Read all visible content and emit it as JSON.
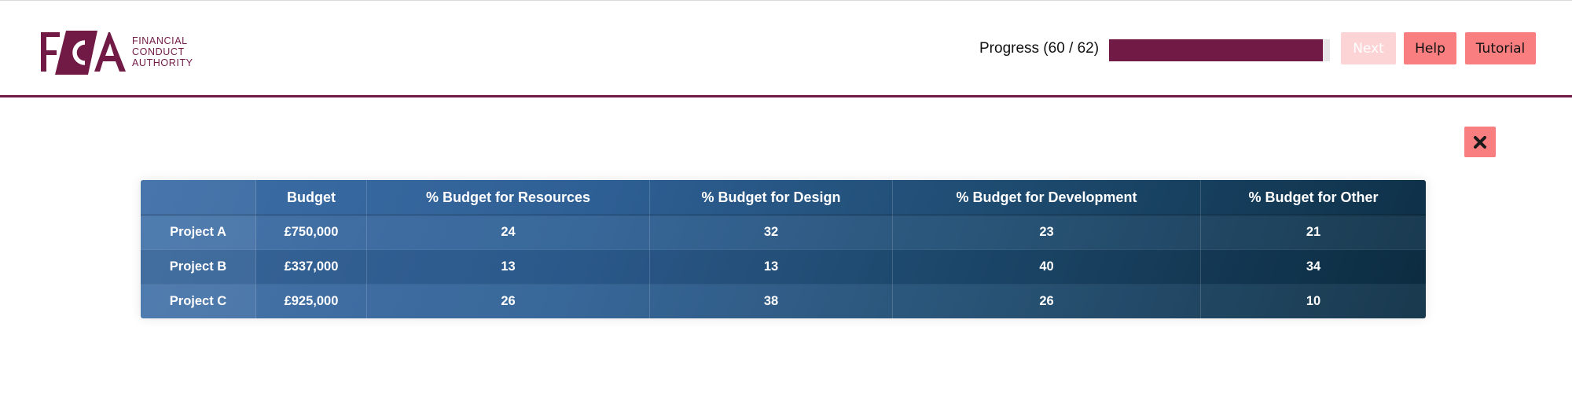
{
  "header": {
    "logo": {
      "letters": "FCA",
      "words": [
        "FINANCIAL",
        "CONDUCT",
        "AUTHORITY"
      ]
    },
    "progress": {
      "label": "Progress (60 / 62)",
      "current": 60,
      "total": 62,
      "fraction": 0.9677
    },
    "buttons": {
      "next": "Next",
      "help": "Help",
      "tutorial": "Tutorial"
    },
    "colors": {
      "brand": "#701a45",
      "button": "#f87e80",
      "button_disabled": "#fcd4d5"
    }
  },
  "dialog": {
    "close_icon": "close-icon",
    "table": {
      "headers": [
        "",
        "Budget",
        "% Budget for Resources",
        "% Budget for Design",
        "% Budget for Development",
        "% Budget for Other"
      ],
      "rows": [
        [
          "Project A",
          "£750,000",
          "24",
          "32",
          "23",
          "21"
        ],
        [
          "Project B",
          "£337,000",
          "13",
          "13",
          "40",
          "34"
        ],
        [
          "Project C",
          "£925,000",
          "26",
          "38",
          "26",
          "10"
        ]
      ]
    }
  }
}
